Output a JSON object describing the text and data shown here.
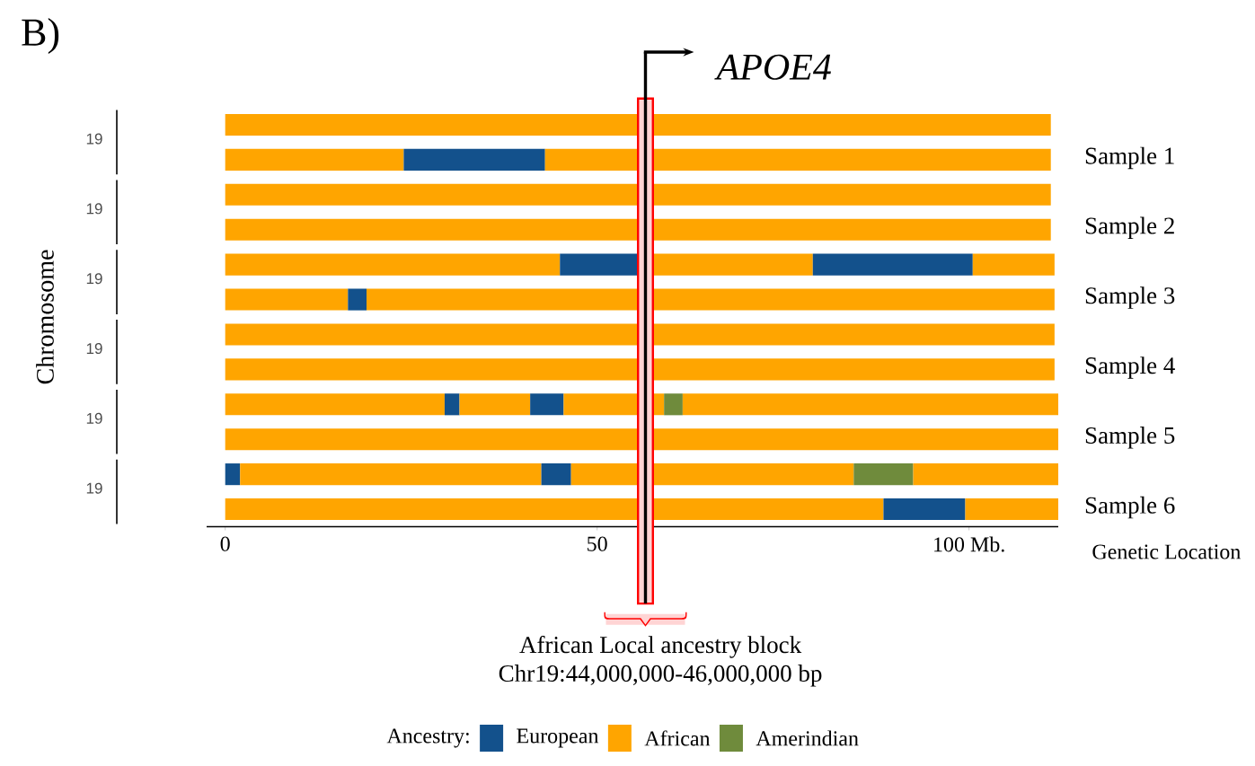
{
  "chart_data": {
    "type": "bar",
    "orientation": "horizontal",
    "stacked": true,
    "categories": [
      null,
      null,
      null,
      null,
      null,
      null,
      null,
      null,
      null,
      null,
      null,
      null
    ],
    "series": [
      {
        "values": [
          111,
          24,
          111,
          111,
          45,
          16.5,
          111.5,
          111.5,
          29.5,
          112,
          2,
          88.5
        ],
        "colors": [
          "#ffa500",
          "#ffa500",
          "#ffa500",
          "#ffa500",
          "#ffa500",
          "#ffa500",
          "#ffa500",
          "#ffa500",
          "#ffa500",
          "#ffa500",
          "#13518c",
          "#ffa500"
        ]
      },
      {
        "values": [
          null,
          19,
          null,
          null,
          10.5,
          2.5,
          null,
          null,
          2,
          null,
          40.5,
          11
        ],
        "colors": [
          null,
          "#13518c",
          null,
          null,
          "#13518c",
          "#13518c",
          null,
          null,
          "#13518c",
          null,
          "#ffa500",
          "#13518c"
        ]
      },
      {
        "values": [
          null,
          68,
          null,
          null,
          23.5,
          92.5,
          null,
          null,
          9.5,
          null,
          4,
          12.5
        ],
        "colors": [
          null,
          "#ffa500",
          null,
          null,
          "#ffa500",
          "#ffa500",
          null,
          null,
          "#ffa500",
          null,
          "#13518c",
          "#ffa500"
        ]
      },
      {
        "values": [
          null,
          null,
          null,
          null,
          21.5,
          null,
          null,
          null,
          4.5,
          null,
          38,
          null
        ],
        "colors": [
          null,
          null,
          null,
          null,
          "#13518c",
          null,
          null,
          null,
          "#13518c",
          null,
          "#ffa500",
          null
        ]
      },
      {
        "values": [
          null,
          null,
          null,
          null,
          11,
          null,
          null,
          null,
          13.5,
          null,
          8,
          null
        ],
        "colors": [
          null,
          null,
          null,
          null,
          "#ffa500",
          null,
          null,
          null,
          "#ffa500",
          null,
          "#6f8b3c",
          null
        ]
      },
      {
        "values": [
          null,
          null,
          null,
          null,
          null,
          null,
          null,
          null,
          2.5,
          null,
          19.5,
          null
        ],
        "colors": [
          null,
          null,
          null,
          null,
          null,
          null,
          null,
          null,
          "#6f8b3c",
          null,
          "#ffa500",
          null
        ]
      },
      {
        "values": [
          null,
          null,
          null,
          null,
          null,
          null,
          null,
          null,
          50.5,
          null,
          null,
          null
        ],
        "colors": [
          null,
          null,
          null,
          null,
          null,
          null,
          null,
          null,
          "#ffa500",
          null,
          null,
          null
        ]
      }
    ],
    "xlim": [
      -2.5,
      112
    ],
    "xticks": [
      0,
      50,
      {
        "value": 100,
        "label": "100 Mb."
      }
    ],
    "xlabel": "Genetic Location",
    "bands": [
      {
        "axis": "x",
        "from": 55.5,
        "to": 57.5,
        "color": "#ff0000"
      }
    ],
    "ref_lines": [
      {
        "axis": "x",
        "value": 56.5,
        "label": "APOE4",
        "color": "#000000"
      }
    ],
    "annotations": [
      "B)",
      "African Local ancestry block",
      "Chr19:44,000,000-46,000,000 bp",
      "19",
      "19",
      "19",
      "19",
      "19",
      "19",
      "Sample 1",
      "Sample 2",
      "Sample 3",
      "Sample 4",
      "Sample 5",
      "Sample 6",
      "Chromosome",
      "Ancestry:",
      "European",
      "African",
      "Amerindian"
    ]
  }
}
